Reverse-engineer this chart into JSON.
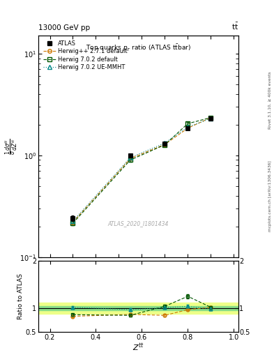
{
  "header_left": "13000 GeV pp",
  "header_right": "t$\\bar{t}$",
  "ylabel_main": "$\\frac{1}{\\sigma}\\frac{d\\sigma^{tt}}{d Z^{tt}}$",
  "ylabel_ratio": "Ratio to ATLAS",
  "xlabel": "$Z^{tt}$",
  "watermark": "ATLAS_2020_I1801434",
  "rivet_text": "Rivet 3.1.10, ≥ 400k events",
  "mcplots_text": "mcplots.cern.ch [arXiv:1306.3436]",
  "x_data": [
    0.3,
    0.55,
    0.7,
    0.8,
    0.9
  ],
  "atlas_y": [
    0.24,
    1.0,
    1.3,
    1.85,
    2.3
  ],
  "atlas_yerr": [
    0.015,
    0.04,
    0.05,
    0.06,
    0.08
  ],
  "herwig271_y": [
    0.22,
    0.93,
    1.28,
    1.85,
    2.35
  ],
  "herwig271_yerr": [
    0.01,
    0.03,
    0.04,
    0.05,
    0.07
  ],
  "herwig702_y": [
    0.215,
    0.9,
    1.27,
    2.05,
    2.35
  ],
  "herwig702_yerr": [
    0.01,
    0.03,
    0.04,
    0.06,
    0.07
  ],
  "herwig702ue_y": [
    0.225,
    0.95,
    1.32,
    1.9,
    2.3
  ],
  "herwig702ue_yerr": [
    0.01,
    0.03,
    0.04,
    0.05,
    0.07
  ],
  "ratio_herwig271": [
    0.83,
    0.87,
    0.85,
    0.97,
    1.02
  ],
  "ratio_herwig271_err": [
    0.02,
    0.02,
    0.02,
    0.02,
    0.02
  ],
  "ratio_herwig702": [
    0.865,
    0.85,
    1.04,
    1.25,
    1.02
  ],
  "ratio_herwig702_err": [
    0.02,
    0.03,
    0.03,
    0.04,
    0.03
  ],
  "ratio_herwig702ue": [
    1.02,
    0.97,
    1.01,
    1.04,
    0.985
  ],
  "ratio_herwig702ue_err": [
    0.02,
    0.03,
    0.03,
    0.03,
    0.03
  ],
  "atlas_band_inner": 0.05,
  "atlas_band_outer": 0.12,
  "color_atlas": "#000000",
  "color_herwig271": "#cc7700",
  "color_herwig702": "#005500",
  "color_herwig702ue": "#008888",
  "color_band_inner": "#88dd88",
  "color_band_outer": "#eeff88",
  "xlim": [
    0.15,
    1.02
  ],
  "ylim_main": [
    0.1,
    15.0
  ],
  "ylim_ratio": [
    0.5,
    2.0
  ]
}
